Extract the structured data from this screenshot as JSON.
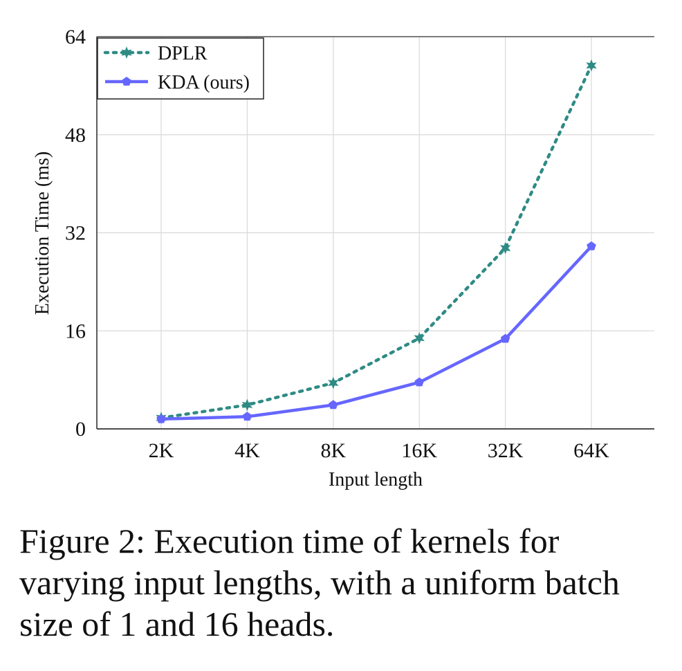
{
  "chart_data": {
    "type": "line",
    "title": "",
    "xlabel": "Input length",
    "ylabel": "Execution Time (ms)",
    "categories": [
      "2K",
      "4K",
      "8K",
      "16K",
      "32K",
      "64K"
    ],
    "ylim": [
      0,
      64
    ],
    "yticks": [
      0,
      16,
      32,
      48,
      64
    ],
    "grid": true,
    "legend_position": "top-left",
    "series": [
      {
        "name": "DPLR",
        "values": [
          1.8,
          3.9,
          7.5,
          14.8,
          29.5,
          59.3
        ],
        "color": "#2e8b84",
        "line_style": "dotted",
        "marker": "star"
      },
      {
        "name": "KDA (ours)",
        "values": [
          1.6,
          2.0,
          3.9,
          7.6,
          14.7,
          29.8
        ],
        "color": "#6666ff",
        "line_style": "solid",
        "marker": "pentagon"
      }
    ]
  },
  "caption": "Figure 2: Execution time of kernels for varying input lengths, with a uniform batch size of 1 and 16 heads."
}
